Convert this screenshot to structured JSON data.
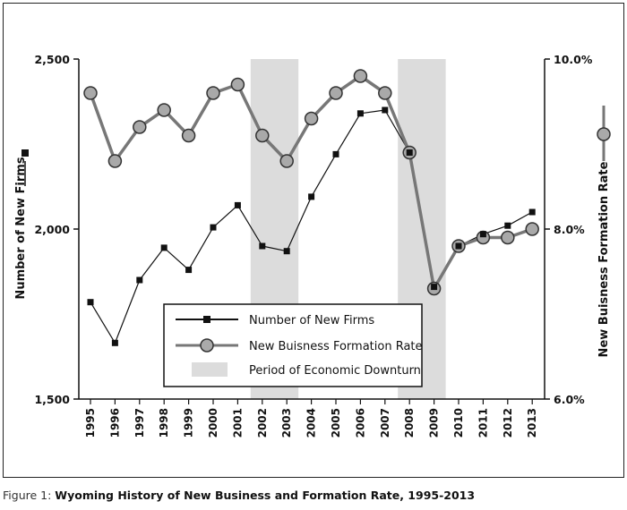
{
  "caption": {
    "label": "Figure 1:",
    "title": "Wyoming History of New Business and Formation Rate, 1995-2013"
  },
  "chart_data": {
    "type": "line",
    "title": "",
    "x": [
      "1995",
      "1996",
      "1997",
      "1998",
      "1999",
      "2000",
      "2001",
      "2002",
      "2003",
      "2004",
      "2005",
      "2006",
      "2007",
      "2008",
      "2009",
      "2010",
      "2011",
      "2012",
      "2013"
    ],
    "left_axis": {
      "label": "Number of New Firms",
      "ticks": [
        "2,500",
        "2,000",
        "1,500"
      ],
      "ylim": [
        1500,
        2500
      ]
    },
    "right_axis": {
      "label": "New Buisness Formation Rate",
      "ticks": [
        "10.0%",
        "8.0%",
        "6.0%"
      ],
      "ylim": [
        6.0,
        10.0
      ]
    },
    "series": [
      {
        "name": "Number of New Firms",
        "axis": "left",
        "marker": "square",
        "color": "#111111",
        "values": [
          1785,
          1665,
          1850,
          1945,
          1880,
          2005,
          2070,
          1950,
          1935,
          2095,
          2220,
          2340,
          2350,
          2225,
          1830,
          1950,
          1985,
          2010,
          2050
        ]
      },
      {
        "name": "New Buisness Formation Rate",
        "axis": "right",
        "marker": "circle",
        "color": "#777777",
        "values": [
          9.6,
          8.8,
          9.2,
          9.4,
          9.1,
          9.6,
          9.7,
          9.1,
          8.8,
          9.3,
          9.6,
          9.8,
          9.6,
          8.9,
          7.3,
          7.8,
          7.9,
          7.9,
          8.0
        ]
      }
    ],
    "shaded_periods": [
      {
        "name": "Period of Economic Downturn",
        "from": "2002",
        "to": "2003",
        "color": "#dcdcdc"
      },
      {
        "name": "Period of Economic Downturn",
        "from": "2008",
        "to": "2009",
        "color": "#dcdcdc"
      }
    ],
    "legend": {
      "placement": "bottom-center",
      "entries": [
        "Number of New Firms",
        "New Buisness Formation Rate",
        "Period of Economic Downturn"
      ]
    },
    "grid": false
  }
}
